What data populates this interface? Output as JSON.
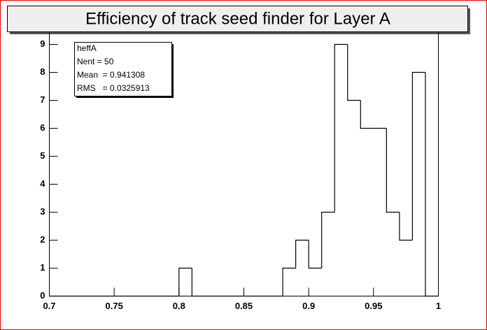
{
  "chart_data": {
    "type": "histogram",
    "title": "Efficiency of track seed finder for Layer A",
    "bins": [
      0.7,
      0.71,
      0.72,
      0.73,
      0.74,
      0.75,
      0.76,
      0.77,
      0.78,
      0.79,
      0.8,
      0.81,
      0.82,
      0.83,
      0.84,
      0.85,
      0.86,
      0.87,
      0.88,
      0.89,
      0.9,
      0.91,
      0.92,
      0.93,
      0.94,
      0.95,
      0.96,
      0.97,
      0.98,
      0.99,
      1.0
    ],
    "values": [
      0,
      0,
      0,
      0,
      0,
      0,
      0,
      0,
      0,
      0,
      1,
      0,
      0,
      0,
      0,
      0,
      0,
      0,
      1,
      2,
      1,
      3,
      9,
      7,
      6,
      6,
      3,
      2,
      8,
      0
    ],
    "color": "#000000",
    "xlim": [
      0.7,
      1.0
    ],
    "xticks": [
      0.7,
      0.75,
      0.8,
      0.85,
      0.9,
      0.95,
      1
    ],
    "ylim": [
      0,
      9.45
    ],
    "yticks": [
      0,
      1,
      2,
      3,
      4,
      5,
      6,
      7,
      8,
      9
    ],
    "stats": [
      "heffA",
      "Nent = 50",
      "Mean  = 0.941308",
      "RMS   = 0.0325913"
    ]
  }
}
